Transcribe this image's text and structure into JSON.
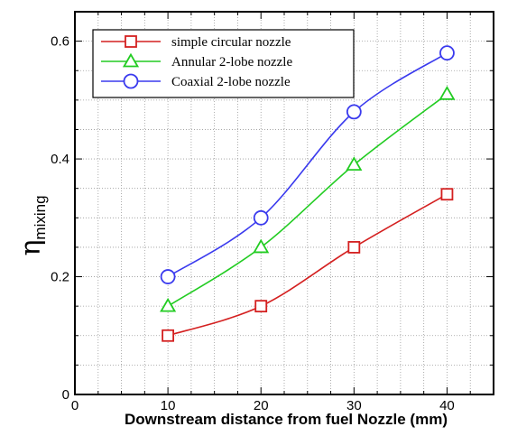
{
  "chart_data": {
    "type": "line",
    "xlabel": "Downstream distance from fuel Nozzle (mm)",
    "ylabel": "η",
    "ylabel_subscript": "mixing",
    "xlim": [
      0,
      45
    ],
    "ylim": [
      0,
      0.65
    ],
    "xticks": [
      0,
      10,
      20,
      30,
      40
    ],
    "yticks": [
      0,
      0.2,
      0.4,
      0.6
    ],
    "xtick_labels": [
      "0",
      "10",
      "20",
      "30",
      "40"
    ],
    "ytick_labels": [
      "0",
      "0.2",
      "0.4",
      "0.6"
    ],
    "grid": true,
    "legend_position": "top-left",
    "x": [
      10,
      20,
      30,
      40
    ],
    "series": [
      {
        "name": "simple circular nozzle",
        "values": [
          0.1,
          0.15,
          0.25,
          0.34
        ],
        "color": "#d42020",
        "marker": "square"
      },
      {
        "name": "Annular 2-lobe nozzle",
        "values": [
          0.15,
          0.25,
          0.39,
          0.51
        ],
        "color": "#22cc22",
        "marker": "triangle"
      },
      {
        "name": "Coaxial 2-lobe nozzle",
        "values": [
          0.2,
          0.3,
          0.48,
          0.58
        ],
        "color": "#3a3aee",
        "marker": "circle"
      }
    ]
  }
}
